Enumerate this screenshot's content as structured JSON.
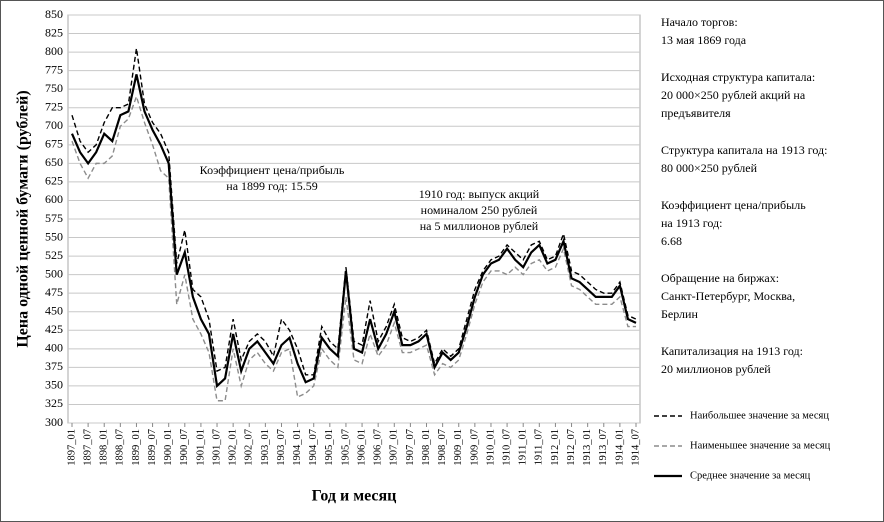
{
  "chart_data": {
    "type": "line",
    "ylabel": "Цена одной ценной бумаги (рублей)",
    "xlabel": "Год и месяц",
    "categories": [
      "1897_01",
      null,
      "1897_07",
      null,
      "1898_01",
      null,
      "1898_07",
      null,
      "1899_01",
      null,
      "1899_07",
      null,
      "1900_01",
      null,
      "1900_07",
      null,
      "1901_01",
      null,
      "1901_07",
      null,
      "1902_01",
      null,
      "1902_07",
      null,
      "1903_01",
      null,
      "1903_07",
      null,
      "1904_01",
      null,
      "1904_07",
      null,
      "1905_01",
      null,
      "1905_07",
      null,
      "1906_01",
      null,
      "1906_07",
      null,
      "1907_01",
      null,
      "1907_07",
      null,
      "1908_01",
      null,
      "1908_07",
      null,
      "1909_01",
      null,
      "1909_07",
      null,
      "1910_01",
      null,
      "1910_07",
      null,
      "1911_01",
      null,
      "1911_07",
      null,
      "1912_01",
      null,
      "1912_07",
      null,
      "1913_01",
      null,
      "1913_07",
      null,
      "1914_01",
      null,
      "1914_07"
    ],
    "series": [
      {
        "name": "Наибольшее значение за месяц",
        "color": "#000000",
        "dash": true,
        "values": [
          715,
          680,
          665,
          675,
          705,
          725,
          725,
          730,
          805,
          730,
          705,
          690,
          665,
          515,
          560,
          480,
          470,
          440,
          370,
          375,
          440,
          385,
          410,
          420,
          410,
          390,
          440,
          425,
          400,
          365,
          365,
          430,
          410,
          400,
          510,
          410,
          405,
          465,
          410,
          430,
          460,
          415,
          410,
          415,
          425,
          380,
          400,
          390,
          400,
          440,
          480,
          505,
          520,
          525,
          540,
          530,
          520,
          540,
          545,
          520,
          525,
          555,
          505,
          500,
          490,
          480,
          475,
          475,
          490,
          445,
          440
        ]
      },
      {
        "name": "Наименьшее значение за месяц",
        "color": "#8c8c8c",
        "dash": true,
        "values": [
          680,
          650,
          630,
          650,
          650,
          660,
          700,
          710,
          740,
          705,
          675,
          640,
          630,
          460,
          500,
          440,
          420,
          395,
          330,
          330,
          400,
          350,
          385,
          395,
          380,
          370,
          395,
          400,
          335,
          340,
          350,
          400,
          385,
          375,
          470,
          385,
          380,
          420,
          390,
          405,
          435,
          395,
          395,
          400,
          405,
          365,
          380,
          375,
          385,
          420,
          460,
          490,
          505,
          505,
          500,
          510,
          500,
          515,
          520,
          505,
          510,
          535,
          485,
          480,
          470,
          460,
          460,
          460,
          470,
          430,
          430
        ]
      },
      {
        "name": "Среднее значение за месяц",
        "color": "#000000",
        "dash": false,
        "values": [
          690,
          665,
          650,
          665,
          690,
          680,
          715,
          720,
          770,
          720,
          695,
          675,
          650,
          500,
          530,
          470,
          440,
          420,
          350,
          360,
          420,
          370,
          400,
          410,
          395,
          380,
          405,
          415,
          380,
          355,
          360,
          415,
          400,
          390,
          505,
          400,
          395,
          440,
          400,
          420,
          450,
          405,
          405,
          410,
          420,
          375,
          395,
          385,
          395,
          430,
          470,
          500,
          515,
          520,
          535,
          520,
          510,
          530,
          540,
          515,
          520,
          545,
          495,
          490,
          480,
          470,
          470,
          470,
          485,
          440,
          435
        ]
      }
    ],
    "ylim": [
      300,
      850
    ],
    "yticks": [
      300,
      325,
      350,
      375,
      400,
      425,
      450,
      475,
      500,
      525,
      550,
      575,
      600,
      625,
      650,
      675,
      700,
      725,
      750,
      775,
      800,
      825,
      850
    ],
    "grid": true,
    "annotations": [
      {
        "lines": [
          "Коэффициент цена/прибыль",
          "на 1899 год: 15.59"
        ]
      },
      {
        "lines": [
          "1910 год: выпуск акций",
          "номиналом 250 рублей",
          "на 5 миллионов рублей"
        ]
      }
    ],
    "side_notes": [
      {
        "lines": [
          "Начало торгов:",
          "13 мая 1869 года"
        ]
      },
      {
        "lines": [
          "Исходная структура капитала:",
          "20 000×250 рублей акций на",
          "предъявителя"
        ]
      },
      {
        "lines": [
          "Структура капитала на 1913 год:",
          "80 000×250 рублей"
        ]
      },
      {
        "lines": [
          "Коэффициент цена/прибыль",
          "на 1913 год:",
          "6.68"
        ]
      },
      {
        "lines": [
          "Обращение на биржах:",
          "Санкт-Петербург, Москва,",
          "Берлин"
        ]
      },
      {
        "lines": [
          "Капитализация на 1913 год:",
          "20 миллионов рублей"
        ]
      }
    ]
  }
}
